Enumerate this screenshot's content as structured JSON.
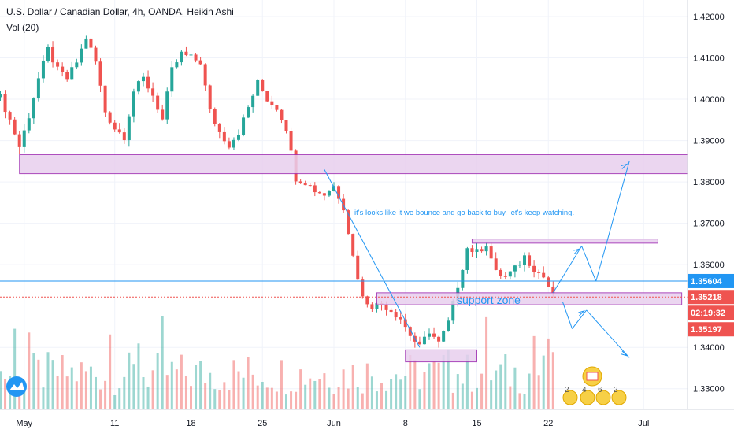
{
  "header": {
    "title": "U.S. Dollar / Canadian Dollar, 4h, OANDA, Heikin Ashi",
    "volume_label": "Vol (20)"
  },
  "y_axis_ticks": [
    "1.42000",
    "1.41000",
    "1.40000",
    "1.39000",
    "1.38000",
    "1.37000",
    "1.36000",
    "1.34000",
    "1.33000"
  ],
  "x_axis_ticks": [
    "May",
    "11",
    "18",
    "25",
    "Jun",
    "8",
    "15",
    "22",
    "Jul"
  ],
  "price_badges": {
    "blue_line": "1.35604",
    "last": "1.35218",
    "countdown": "02:19:32",
    "low": "1.35197"
  },
  "annotations": {
    "note": "it's looks like it we bounce and go back to buy. let's keep watching.",
    "support_label": "support zone"
  },
  "emoji_row": [
    "2",
    "4",
    "6",
    "2"
  ],
  "colors": {
    "up": "#26a69a",
    "down": "#ef5350",
    "zone_fill": "#e8cfee",
    "zone_border": "#9c27b0",
    "trend_line": "#2196f3",
    "grid": "#f0f3fa",
    "axis_text": "#131722"
  },
  "chart_data": {
    "type": "candlestick",
    "title": "U.S. Dollar / Canadian Dollar, 4h, OANDA, Heikin Ashi",
    "ylim": [
      1.325,
      1.424
    ],
    "x_ticks": [
      "May",
      "11",
      "18",
      "25",
      "Jun",
      "8",
      "15",
      "22",
      "Jul"
    ],
    "price_path": [
      [
        0,
        1.4005
      ],
      [
        2,
        1.395
      ],
      [
        4,
        1.3885
      ],
      [
        6,
        1.396
      ],
      [
        8,
        1.405
      ],
      [
        10,
        1.412
      ],
      [
        12,
        1.407
      ],
      [
        14,
        1.405
      ],
      [
        16,
        1.409
      ],
      [
        18,
        1.415
      ],
      [
        20,
        1.409
      ],
      [
        22,
        1.397
      ],
      [
        24,
        1.393
      ],
      [
        26,
        1.391
      ],
      [
        28,
        1.402
      ],
      [
        30,
        1.405
      ],
      [
        32,
        1.401
      ],
      [
        34,
        1.395
      ],
      [
        36,
        1.407
      ],
      [
        38,
        1.411
      ],
      [
        40,
        1.41
      ],
      [
        42,
        1.409
      ],
      [
        44,
        1.397
      ],
      [
        46,
        1.392
      ],
      [
        48,
        1.389
      ],
      [
        50,
        1.392
      ],
      [
        52,
        1.398
      ],
      [
        54,
        1.404
      ],
      [
        56,
        1.4
      ],
      [
        58,
        1.398
      ],
      [
        60,
        1.393
      ],
      [
        62,
        1.381
      ],
      [
        64,
        1.38
      ],
      [
        66,
        1.378
      ],
      [
        68,
        1.377
      ],
      [
        70,
        1.379
      ],
      [
        72,
        1.374
      ],
      [
        74,
        1.362
      ],
      [
        76,
        1.352
      ],
      [
        78,
        1.35
      ],
      [
        80,
        1.3505
      ],
      [
        82,
        1.349
      ],
      [
        84,
        1.347
      ],
      [
        86,
        1.343
      ],
      [
        88,
        1.34
      ],
      [
        90,
        1.344
      ],
      [
        92,
        1.341
      ],
      [
        94,
        1.346
      ],
      [
        96,
        1.355
      ],
      [
        98,
        1.364
      ],
      [
        100,
        1.363
      ],
      [
        102,
        1.365
      ],
      [
        104,
        1.358
      ],
      [
        106,
        1.357
      ],
      [
        108,
        1.359
      ],
      [
        110,
        1.362
      ],
      [
        112,
        1.359
      ],
      [
        114,
        1.357
      ],
      [
        116,
        1.3525
      ]
    ],
    "candle_count": 117,
    "zones": [
      {
        "name": "upper zone",
        "from_index": 4,
        "to_index": 145,
        "top": 1.3866,
        "bottom": 1.382
      },
      {
        "name": "support zone",
        "from_index": 79,
        "to_index": 143,
        "top": 1.3532,
        "bottom": 1.3503
      },
      {
        "name": "resistance zone",
        "from_index": 99,
        "to_index": 138,
        "top": 1.3662,
        "bottom": 1.3652
      },
      {
        "name": "bottom zone",
        "from_index": 85,
        "to_index": 100,
        "top": 1.3394,
        "bottom": 1.3365
      }
    ],
    "horizontal_lines": [
      {
        "label": "1.35604",
        "value": 1.35604,
        "style": "solid"
      },
      {
        "label": "1.35218",
        "value": 1.35218,
        "style": "dotted"
      }
    ]
  }
}
